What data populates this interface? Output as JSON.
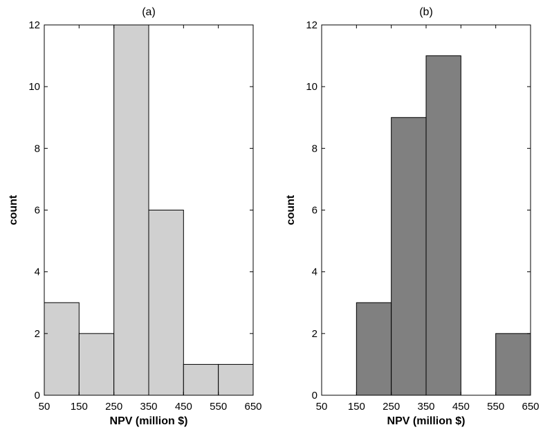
{
  "chart_data": [
    {
      "type": "bar",
      "title": "(a)",
      "xlabel": "NPV (million $)",
      "ylabel": "count",
      "x_ticks": [
        "50",
        "150",
        "250",
        "350",
        "450",
        "550",
        "650"
      ],
      "y_ticks": [
        "0",
        "2",
        "4",
        "6",
        "8",
        "10",
        "12"
      ],
      "xlim": [
        50,
        650
      ],
      "ylim": [
        0,
        12
      ],
      "bin_edges": [
        50,
        150,
        250,
        350,
        450,
        550,
        650
      ],
      "values": [
        3,
        2,
        12,
        6,
        1,
        1
      ],
      "bar_color": "#d0d0d0",
      "grid": false
    },
    {
      "type": "bar",
      "title": "(b)",
      "xlabel": "NPV (million $)",
      "ylabel": "count",
      "x_ticks": [
        "50",
        "150",
        "250",
        "350",
        "450",
        "550",
        "650"
      ],
      "y_ticks": [
        "0",
        "2",
        "4",
        "6",
        "8",
        "10",
        "12"
      ],
      "xlim": [
        50,
        650
      ],
      "ylim": [
        0,
        12
      ],
      "bin_edges": [
        50,
        150,
        250,
        350,
        450,
        550,
        650
      ],
      "values": [
        0,
        3,
        9,
        11,
        0,
        2
      ],
      "bar_color": "#808080",
      "grid": false
    }
  ]
}
